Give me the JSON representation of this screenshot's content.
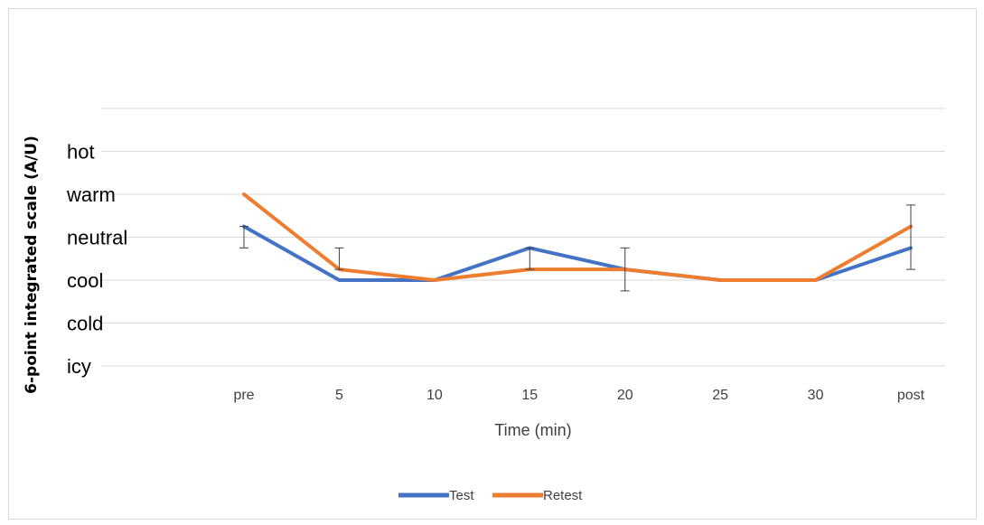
{
  "chart_data": {
    "type": "line",
    "categories": [
      "pre",
      "5",
      "10",
      "15",
      "20",
      "25",
      "30",
      "post"
    ],
    "y_levels": [
      "icy",
      "cold",
      "cool",
      "neutral",
      "warm",
      "hot"
    ],
    "ylim": [
      1,
      6
    ],
    "xlabel": "Time (min)",
    "ylabel": "6-point integrated scale (A/U)",
    "grid": true,
    "legend_position": "bottom",
    "series": [
      {
        "name": "Test",
        "color": "#4472c4",
        "values": [
          4.25,
          3.0,
          3.0,
          3.75,
          3.25,
          3.0,
          3.0,
          3.75
        ]
      },
      {
        "name": "Retest",
        "color": "#ed7d31",
        "values": [
          5.0,
          3.25,
          3.0,
          3.25,
          3.25,
          3.0,
          3.0,
          4.25
        ]
      }
    ],
    "error_bars": [
      {
        "category": "pre",
        "low": 3.75,
        "high": 4.25
      },
      {
        "category": "5",
        "low": 3.25,
        "high": 3.75
      },
      {
        "category": "15",
        "low": 3.25,
        "high": 3.75
      },
      {
        "category": "20",
        "low": 2.75,
        "high": 3.75
      },
      {
        "category": "post",
        "low": 3.25,
        "high": 4.75
      }
    ]
  }
}
